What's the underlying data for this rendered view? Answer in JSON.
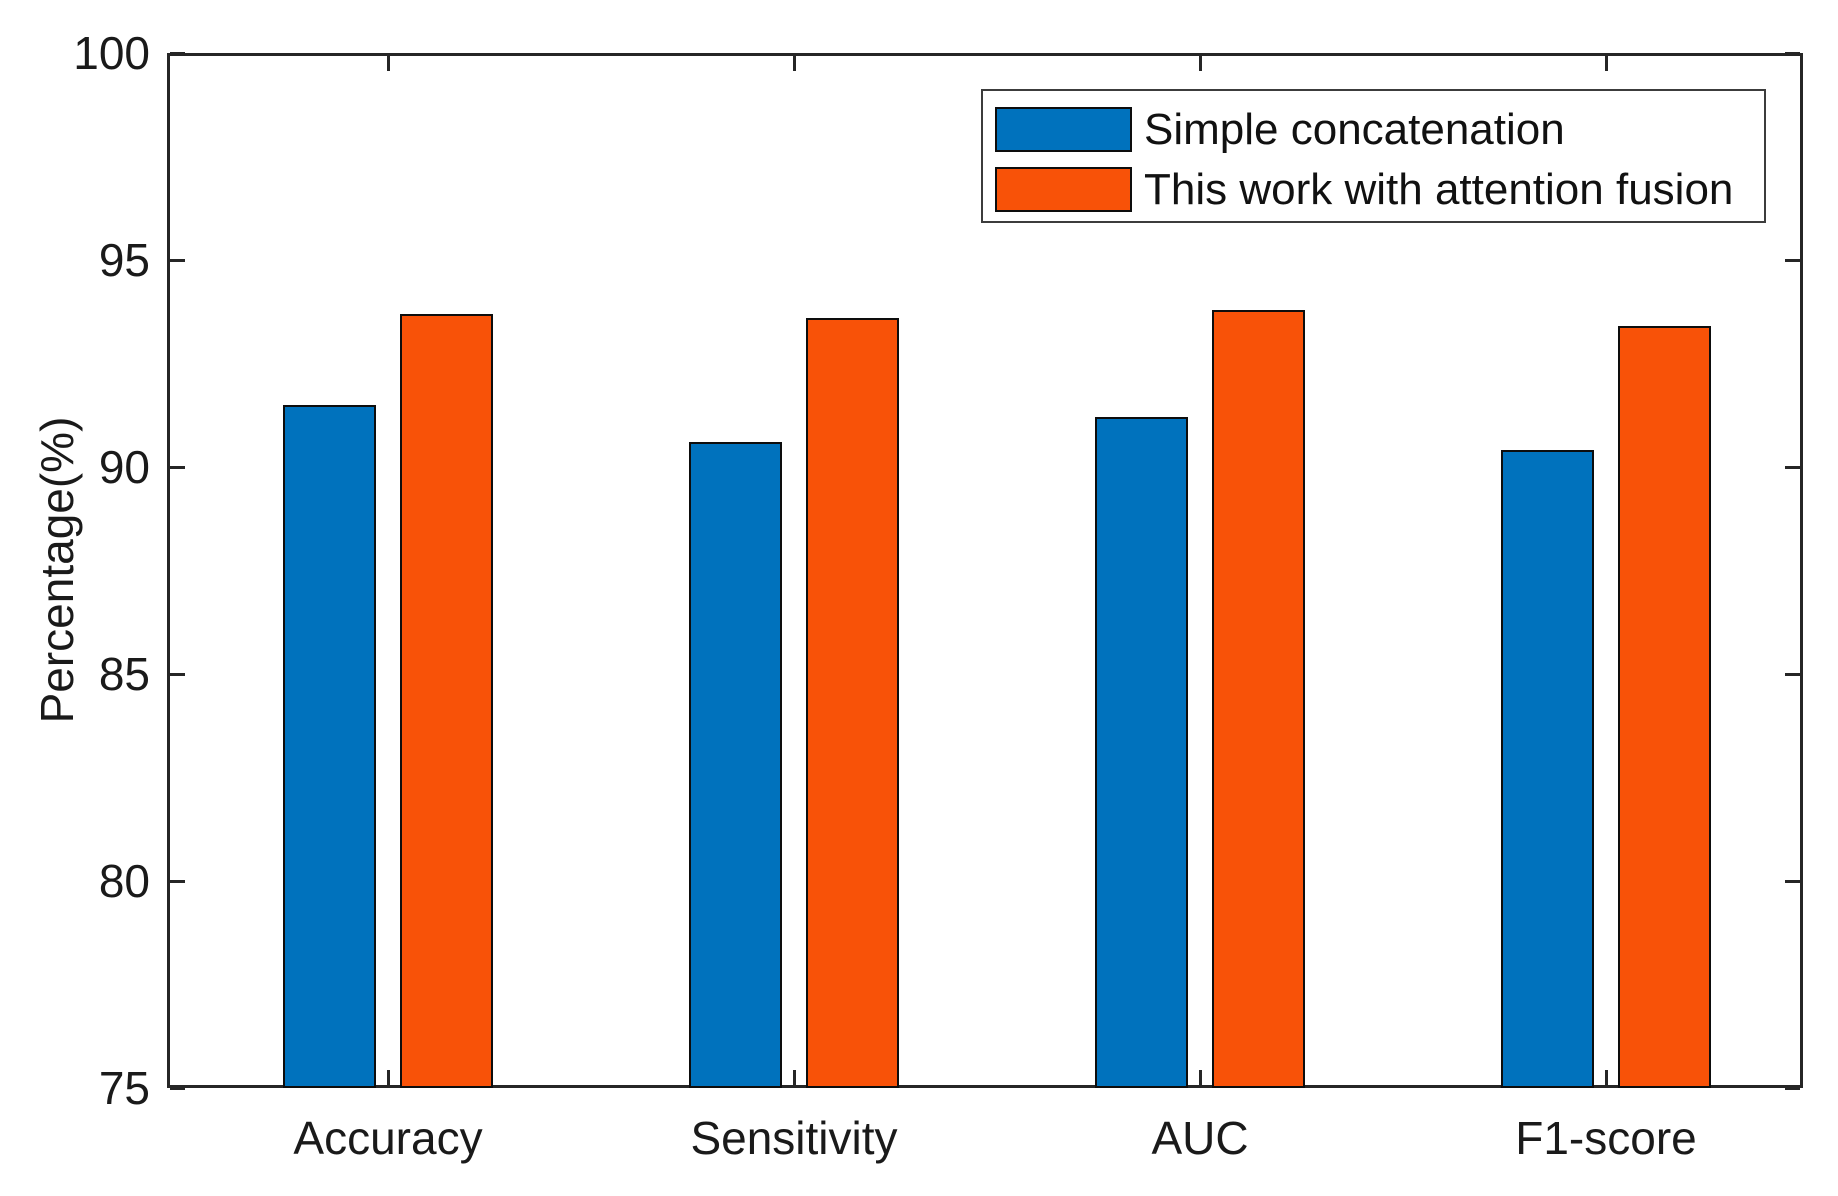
{
  "chart_data": {
    "type": "bar",
    "title": "",
    "categories": [
      "Accuracy",
      "Sensitivity",
      "AUC",
      "F1-score"
    ],
    "series": [
      {
        "name": "Simple concatenation",
        "color": "#0072BD",
        "values": [
          91.5,
          90.6,
          91.2,
          90.4
        ]
      },
      {
        "name": "This work with attention fusion",
        "color": "#F85208",
        "values": [
          93.7,
          93.6,
          93.8,
          93.4
        ]
      }
    ],
    "xlabel": "",
    "ylabel": "Percentage(%)",
    "ylim": [
      75,
      100
    ],
    "yticks": [
      75,
      80,
      85,
      90,
      95,
      100
    ],
    "grid": false,
    "legend_position": "top-right-inside",
    "frame_color": "#262626",
    "bar_edge_color": "#0D0D0D",
    "background_color": "#FFFFFF"
  }
}
